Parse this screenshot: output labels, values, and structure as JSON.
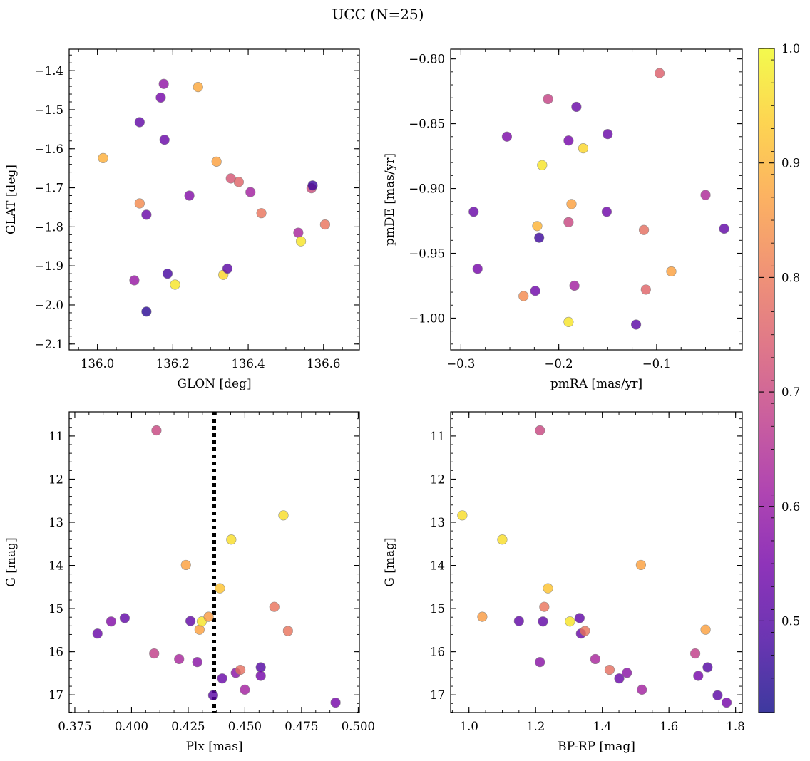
{
  "figure": {
    "title": "UCC (N=25)",
    "colormap": [
      "#0d0887",
      "#46039f",
      "#7201a8",
      "#9c179e",
      "#bd3786",
      "#d8576b",
      "#ed7953",
      "#fb9f3a",
      "#fdca26",
      "#f0f921"
    ],
    "marker_alpha": 0.8,
    "colorbar": {
      "min": 0.42,
      "max": 1.0,
      "ticks": [
        0.5,
        0.6,
        0.7,
        0.8,
        0.9,
        1.0
      ],
      "tick_labels": [
        "0.5",
        "0.6",
        "0.7",
        "0.8",
        "0.9",
        "1.0"
      ]
    }
  },
  "chart_data": [
    {
      "type": "scatter",
      "xlabel": "GLON [deg]",
      "ylabel": "GLAT [deg]",
      "xlim": [
        135.925,
        136.695
      ],
      "ylim": [
        -2.115,
        -1.345
      ],
      "y_inverted": false,
      "xticks": [
        136.0,
        136.2,
        136.4,
        136.6
      ],
      "xtick_labels": [
        "136.0",
        "136.2",
        "136.4",
        "136.6"
      ],
      "yticks": [
        -2.1,
        -2.0,
        -1.9,
        -1.8,
        -1.7,
        -1.6,
        -1.5,
        -1.4
      ],
      "ytick_labels": [
        "−2.1",
        "−2.0",
        "−1.9",
        "−1.8",
        "−1.7",
        "−1.6",
        "−1.5",
        "−1.4"
      ],
      "points": [
        {
          "x": 136.015,
          "y": -1.624,
          "c": 0.89
        },
        {
          "x": 136.098,
          "y": -1.937,
          "c": 0.6
        },
        {
          "x": 136.112,
          "y": -1.532,
          "c": 0.52
        },
        {
          "x": 136.112,
          "y": -1.74,
          "c": 0.83
        },
        {
          "x": 136.13,
          "y": -1.769,
          "c": 0.53
        },
        {
          "x": 136.13,
          "y": -2.017,
          "c": 0.45
        },
        {
          "x": 136.168,
          "y": -1.469,
          "c": 0.55
        },
        {
          "x": 136.176,
          "y": -1.434,
          "c": 0.59
        },
        {
          "x": 136.178,
          "y": -1.577,
          "c": 0.53
        },
        {
          "x": 136.186,
          "y": -1.92,
          "c": 0.48
        },
        {
          "x": 136.206,
          "y": -1.948,
          "c": 0.97
        },
        {
          "x": 136.244,
          "y": -1.72,
          "c": 0.57
        },
        {
          "x": 136.267,
          "y": -1.442,
          "c": 0.88
        },
        {
          "x": 136.316,
          "y": -1.633,
          "c": 0.87
        },
        {
          "x": 136.334,
          "y": -1.923,
          "c": 0.95
        },
        {
          "x": 136.345,
          "y": -1.907,
          "c": 0.51
        },
        {
          "x": 136.354,
          "y": -1.676,
          "c": 0.73
        },
        {
          "x": 136.375,
          "y": -1.685,
          "c": 0.76
        },
        {
          "x": 136.406,
          "y": -1.711,
          "c": 0.62
        },
        {
          "x": 136.435,
          "y": -1.765,
          "c": 0.79
        },
        {
          "x": 136.533,
          "y": -1.815,
          "c": 0.63
        },
        {
          "x": 136.54,
          "y": -1.837,
          "c": 0.97
        },
        {
          "x": 136.568,
          "y": -1.701,
          "c": 0.71
        },
        {
          "x": 136.571,
          "y": -1.694,
          "c": 0.47
        },
        {
          "x": 136.604,
          "y": -1.794,
          "c": 0.79
        }
      ]
    },
    {
      "type": "scatter",
      "xlabel": "pmRA [mas/yr]",
      "ylabel": "pmDE [mas/yr]",
      "xlim": [
        -0.3105,
        -0.0125
      ],
      "ylim": [
        -1.0245,
        -0.7925
      ],
      "y_inverted": false,
      "xticks": [
        -0.3,
        -0.2,
        -0.1
      ],
      "xtick_labels": [
        "−0.3",
        "−0.2",
        "−0.1"
      ],
      "yticks": [
        -1.0,
        -0.95,
        -0.9,
        -0.85,
        -0.8
      ],
      "ytick_labels": [
        "−1.00",
        "−0.95",
        "−0.90",
        "−0.85",
        "−0.80"
      ],
      "points": [
        {
          "x": -0.287,
          "y": -0.918,
          "c": 0.53
        },
        {
          "x": -0.283,
          "y": -0.962,
          "c": 0.55
        },
        {
          "x": -0.253,
          "y": -0.86,
          "c": 0.56
        },
        {
          "x": -0.236,
          "y": -0.983,
          "c": 0.83
        },
        {
          "x": -0.224,
          "y": -0.979,
          "c": 0.54
        },
        {
          "x": -0.222,
          "y": -0.929,
          "c": 0.9
        },
        {
          "x": -0.22,
          "y": -0.938,
          "c": 0.47
        },
        {
          "x": -0.217,
          "y": -0.882,
          "c": 0.97
        },
        {
          "x": -0.211,
          "y": -0.831,
          "c": 0.69
        },
        {
          "x": -0.19,
          "y": -1.003,
          "c": 0.97
        },
        {
          "x": -0.19,
          "y": -0.863,
          "c": 0.55
        },
        {
          "x": -0.19,
          "y": -0.926,
          "c": 0.7
        },
        {
          "x": -0.187,
          "y": -0.912,
          "c": 0.87
        },
        {
          "x": -0.184,
          "y": -0.975,
          "c": 0.62
        },
        {
          "x": -0.182,
          "y": -0.837,
          "c": 0.53
        },
        {
          "x": -0.175,
          "y": -0.869,
          "c": 0.95
        },
        {
          "x": -0.151,
          "y": -0.918,
          "c": 0.54
        },
        {
          "x": -0.15,
          "y": -0.858,
          "c": 0.53
        },
        {
          "x": -0.121,
          "y": -1.005,
          "c": 0.51
        },
        {
          "x": -0.113,
          "y": -0.932,
          "c": 0.78
        },
        {
          "x": -0.111,
          "y": -0.978,
          "c": 0.76
        },
        {
          "x": -0.097,
          "y": -0.811,
          "c": 0.75
        },
        {
          "x": -0.085,
          "y": -0.964,
          "c": 0.87
        },
        {
          "x": -0.05,
          "y": -0.905,
          "c": 0.64
        },
        {
          "x": -0.031,
          "y": -0.931,
          "c": 0.52
        }
      ]
    },
    {
      "type": "scatter",
      "xlabel": "Plx [mas]",
      "ylabel": "G [mag]",
      "xlim": [
        0.3725,
        0.5005
      ],
      "ylim": [
        17.41,
        10.44
      ],
      "y_inverted": true,
      "xticks": [
        0.375,
        0.4,
        0.425,
        0.45,
        0.475,
        0.5
      ],
      "xtick_labels": [
        "0.375",
        "0.400",
        "0.425",
        "0.450",
        "0.475",
        "0.500"
      ],
      "yticks": [
        11,
        12,
        13,
        14,
        15,
        16,
        17
      ],
      "ytick_labels": [
        "11",
        "12",
        "13",
        "14",
        "15",
        "16",
        "17"
      ],
      "vline": {
        "x": 0.4365,
        "style": "dotted"
      },
      "points": [
        {
          "x": 0.385,
          "y": 15.58,
          "c": 0.53
        },
        {
          "x": 0.391,
          "y": 15.3,
          "c": 0.57
        },
        {
          "x": 0.397,
          "y": 15.22,
          "c": 0.52
        },
        {
          "x": 0.41,
          "y": 16.04,
          "c": 0.68
        },
        {
          "x": 0.411,
          "y": 10.87,
          "c": 0.7
        },
        {
          "x": 0.421,
          "y": 16.17,
          "c": 0.63
        },
        {
          "x": 0.424,
          "y": 13.99,
          "c": 0.87
        },
        {
          "x": 0.426,
          "y": 15.29,
          "c": 0.52
        },
        {
          "x": 0.429,
          "y": 16.24,
          "c": 0.58
        },
        {
          "x": 0.43,
          "y": 15.49,
          "c": 0.87
        },
        {
          "x": 0.431,
          "y": 15.3,
          "c": 0.97
        },
        {
          "x": 0.434,
          "y": 15.19,
          "c": 0.86
        },
        {
          "x": 0.436,
          "y": 17.01,
          "c": 0.51
        },
        {
          "x": 0.439,
          "y": 14.53,
          "c": 0.92
        },
        {
          "x": 0.44,
          "y": 16.62,
          "c": 0.53
        },
        {
          "x": 0.444,
          "y": 13.4,
          "c": 0.96
        },
        {
          "x": 0.446,
          "y": 16.49,
          "c": 0.58
        },
        {
          "x": 0.448,
          "y": 16.42,
          "c": 0.78
        },
        {
          "x": 0.45,
          "y": 16.88,
          "c": 0.62
        },
        {
          "x": 0.457,
          "y": 16.36,
          "c": 0.5
        },
        {
          "x": 0.457,
          "y": 16.56,
          "c": 0.55
        },
        {
          "x": 0.463,
          "y": 14.96,
          "c": 0.79
        },
        {
          "x": 0.467,
          "y": 12.84,
          "c": 0.96
        },
        {
          "x": 0.469,
          "y": 15.52,
          "c": 0.79
        },
        {
          "x": 0.49,
          "y": 17.18,
          "c": 0.55
        }
      ]
    },
    {
      "type": "scatter",
      "xlabel": "BP-RP [mag]",
      "ylabel": "G [mag]",
      "xlim": [
        0.945,
        1.82
      ],
      "ylim": [
        17.41,
        10.44
      ],
      "y_inverted": true,
      "xticks": [
        1.0,
        1.2,
        1.4,
        1.6,
        1.8
      ],
      "xtick_labels": [
        "1.0",
        "1.2",
        "1.4",
        "1.6",
        "1.8"
      ],
      "yticks": [
        11,
        12,
        13,
        14,
        15,
        16,
        17
      ],
      "ytick_labels": [
        "11",
        "12",
        "13",
        "14",
        "15",
        "16",
        "17"
      ],
      "points": [
        {
          "x": 0.98,
          "y": 12.84,
          "c": 0.96
        },
        {
          "x": 1.04,
          "y": 15.19,
          "c": 0.86
        },
        {
          "x": 1.1,
          "y": 13.4,
          "c": 0.96
        },
        {
          "x": 1.15,
          "y": 15.29,
          "c": 0.52
        },
        {
          "x": 1.213,
          "y": 16.24,
          "c": 0.58
        },
        {
          "x": 1.213,
          "y": 10.87,
          "c": 0.7
        },
        {
          "x": 1.222,
          "y": 15.3,
          "c": 0.52
        },
        {
          "x": 1.226,
          "y": 14.96,
          "c": 0.79
        },
        {
          "x": 1.237,
          "y": 14.53,
          "c": 0.92
        },
        {
          "x": 1.303,
          "y": 15.3,
          "c": 0.97
        },
        {
          "x": 1.332,
          "y": 15.22,
          "c": 0.52
        },
        {
          "x": 1.336,
          "y": 15.58,
          "c": 0.53
        },
        {
          "x": 1.348,
          "y": 15.52,
          "c": 0.79
        },
        {
          "x": 1.379,
          "y": 16.17,
          "c": 0.63
        },
        {
          "x": 1.422,
          "y": 16.42,
          "c": 0.78
        },
        {
          "x": 1.451,
          "y": 16.62,
          "c": 0.53
        },
        {
          "x": 1.474,
          "y": 16.49,
          "c": 0.58
        },
        {
          "x": 1.516,
          "y": 13.99,
          "c": 0.87
        },
        {
          "x": 1.519,
          "y": 16.88,
          "c": 0.62
        },
        {
          "x": 1.679,
          "y": 16.04,
          "c": 0.68
        },
        {
          "x": 1.688,
          "y": 16.56,
          "c": 0.55
        },
        {
          "x": 1.71,
          "y": 15.49,
          "c": 0.87
        },
        {
          "x": 1.716,
          "y": 16.36,
          "c": 0.5
        },
        {
          "x": 1.746,
          "y": 17.01,
          "c": 0.51
        },
        {
          "x": 1.773,
          "y": 17.18,
          "c": 0.55
        }
      ]
    }
  ]
}
